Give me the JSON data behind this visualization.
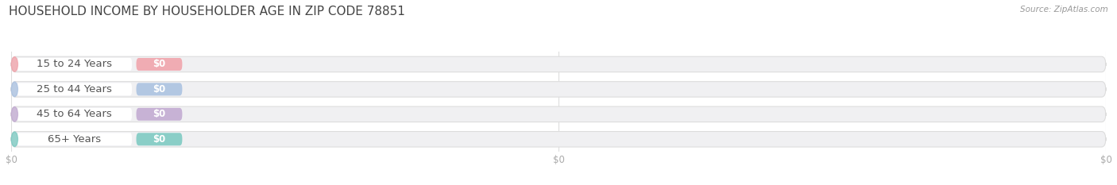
{
  "title": "HOUSEHOLD INCOME BY HOUSEHOLDER AGE IN ZIP CODE 78851",
  "source": "Source: ZipAtlas.com",
  "categories": [
    "15 to 24 Years",
    "25 to 44 Years",
    "45 to 64 Years",
    "65+ Years"
  ],
  "values": [
    0,
    0,
    0,
    0
  ],
  "bar_colors": [
    "#f0a0a8",
    "#a8c0e0",
    "#c0a8d0",
    "#78c8c0"
  ],
  "bg_color": "#ffffff",
  "bar_bg_color": "#f0f0f2",
  "bar_height": 0.62,
  "title_fontsize": 11,
  "label_fontsize": 9.5,
  "badge_fontsize": 8.5,
  "value_label": "$0",
  "tick_label_color": "#aaaaaa",
  "figsize": [
    14.06,
    2.33
  ],
  "dpi": 100,
  "xlim_max": 100,
  "xtick_positions": [
    0,
    50,
    100
  ],
  "xtick_labels": [
    "$0",
    "$0",
    "$0"
  ]
}
